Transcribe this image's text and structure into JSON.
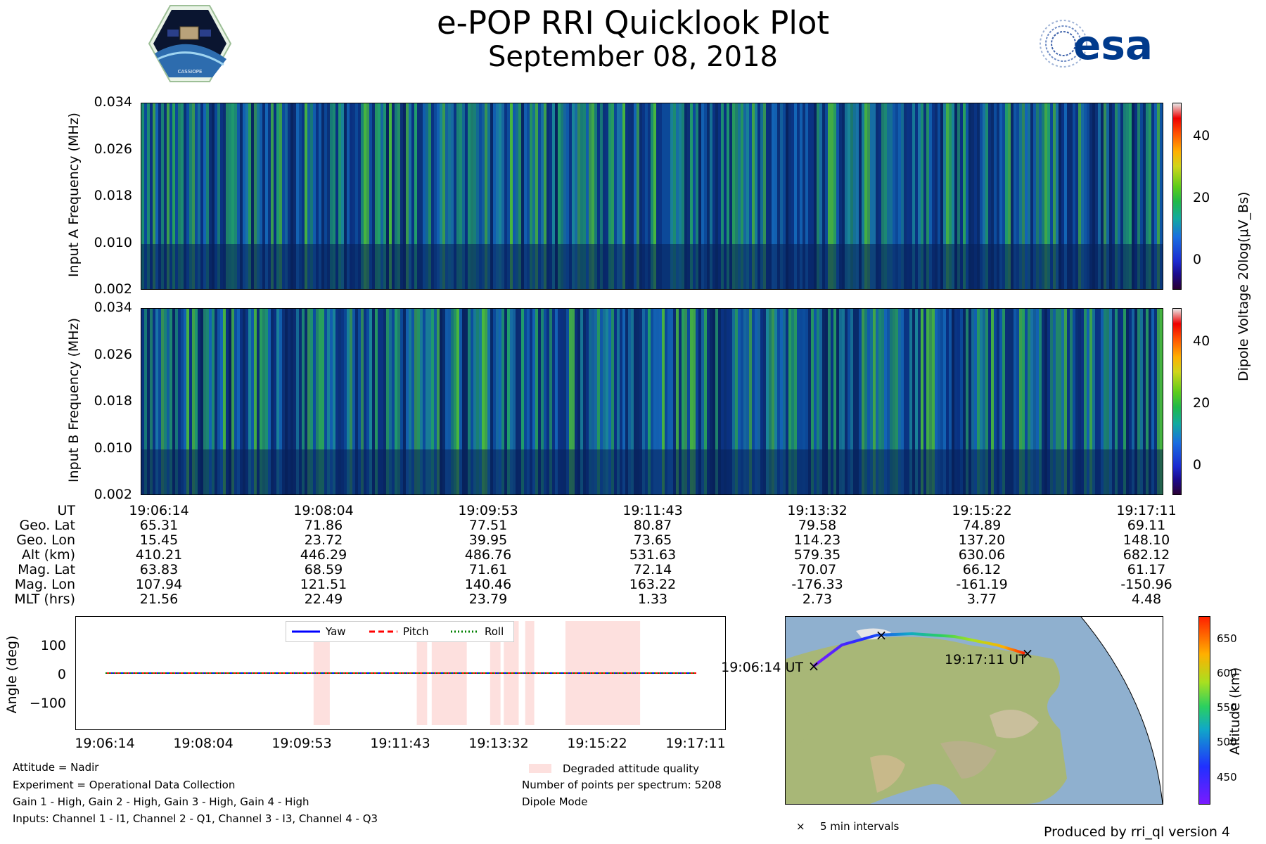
{
  "header": {
    "title": "e-POP RRI Quicklook Plot",
    "date": "September 08, 2018",
    "left_logo_text": "CASSIOPE",
    "right_logo_text": "esa"
  },
  "chart_data": [
    {
      "type": "heatmap",
      "panel": "input_a",
      "ylabel": "Input A Frequency (MHz)",
      "yticks": [
        "0.002",
        "0.010",
        "0.018",
        "0.026",
        "0.034"
      ],
      "ylim": [
        0.002,
        0.034
      ]
    },
    {
      "type": "heatmap",
      "panel": "input_b",
      "ylabel": "Input B Frequency (MHz)",
      "yticks": [
        "0.002",
        "0.010",
        "0.018",
        "0.026",
        "0.034"
      ],
      "ylim": [
        0.002,
        0.034
      ]
    },
    {
      "type": "colorbar",
      "label": "Dipole Voltage 20log(μV_Bs)",
      "ticks": [
        "0",
        "20",
        "40"
      ],
      "range": [
        -10,
        50
      ]
    },
    {
      "type": "table",
      "row_labels": [
        "UT",
        "Geo. Lat",
        "Geo. Lon",
        "Alt (km)",
        "Mag. Lat",
        "Mag. Lon",
        "MLT (hrs)"
      ],
      "columns": [
        [
          "19:06:14",
          "65.31",
          "15.45",
          "410.21",
          "63.83",
          "107.94",
          "21.56"
        ],
        [
          "19:08:04",
          "71.86",
          "23.72",
          "446.29",
          "68.59",
          "121.51",
          "22.49"
        ],
        [
          "19:09:53",
          "77.51",
          "39.95",
          "486.76",
          "71.61",
          "140.46",
          "23.79"
        ],
        [
          "19:11:43",
          "80.87",
          "73.65",
          "531.63",
          "72.14",
          "163.22",
          "1.33"
        ],
        [
          "19:13:32",
          "79.58",
          "114.23",
          "579.35",
          "70.07",
          "-176.33",
          "2.73"
        ],
        [
          "19:15:22",
          "74.89",
          "137.20",
          "630.06",
          "66.12",
          "-161.19",
          "3.77"
        ],
        [
          "19:17:11",
          "69.11",
          "148.10",
          "682.12",
          "61.17",
          "-150.96",
          "4.48"
        ]
      ]
    },
    {
      "type": "line",
      "panel": "attitude",
      "ylabel": "Angle (deg)",
      "yticks": [
        "100",
        "0",
        "−100"
      ],
      "ylim": [
        -180,
        180
      ],
      "x": [
        "19:06:14",
        "19:08:04",
        "19:09:53",
        "19:11:43",
        "19:13:32",
        "19:15:22",
        "19:17:11"
      ],
      "series": [
        {
          "name": "Yaw",
          "color": "#0000ff",
          "values": [
            0,
            0,
            0,
            0,
            0,
            0,
            0
          ]
        },
        {
          "name": "Pitch",
          "color": "#ff0000",
          "values": [
            0,
            0,
            0,
            0,
            0,
            0,
            0
          ]
        },
        {
          "name": "Roll",
          "color": "#008000",
          "values": [
            0,
            0,
            0,
            0,
            0,
            0,
            0
          ]
        }
      ],
      "degraded_spans_fraction": [
        [
          0.366,
          0.391
        ],
        [
          0.525,
          0.541
        ],
        [
          0.548,
          0.602
        ],
        [
          0.638,
          0.654
        ],
        [
          0.659,
          0.682
        ],
        [
          0.692,
          0.706
        ],
        [
          0.754,
          0.869
        ]
      ]
    },
    {
      "type": "map",
      "start_label": "19:06:14 UT",
      "end_label": "19:17:11 UT",
      "legend_marker_label": "5 min intervals",
      "colorbar_label": "Altitude (km)",
      "colorbar_ticks": [
        "650",
        "600",
        "550",
        "500",
        "450"
      ],
      "colorbar_range": [
        410,
        682
      ]
    }
  ],
  "notes_left": [
    "Attitude = Nadir",
    "Experiment = Operational Data Collection",
    "Gain 1 - High, Gain 2 - High, Gain 3 - High, Gain 4 - High",
    "Inputs: Channel 1 - I1, Channel 2 - Q1, Channel 3 - I3, Channel 4 - Q3"
  ],
  "notes_right": {
    "degraded_label": "Degraded attitude quality",
    "points_label": "Number of points per spectrum: 5208",
    "mode_label": "Dipole Mode"
  },
  "footer": "Produced by rri_ql version 4",
  "colors": {
    "degraded": "#fde0de",
    "spectrogram_bg": "#0b3e8a"
  }
}
